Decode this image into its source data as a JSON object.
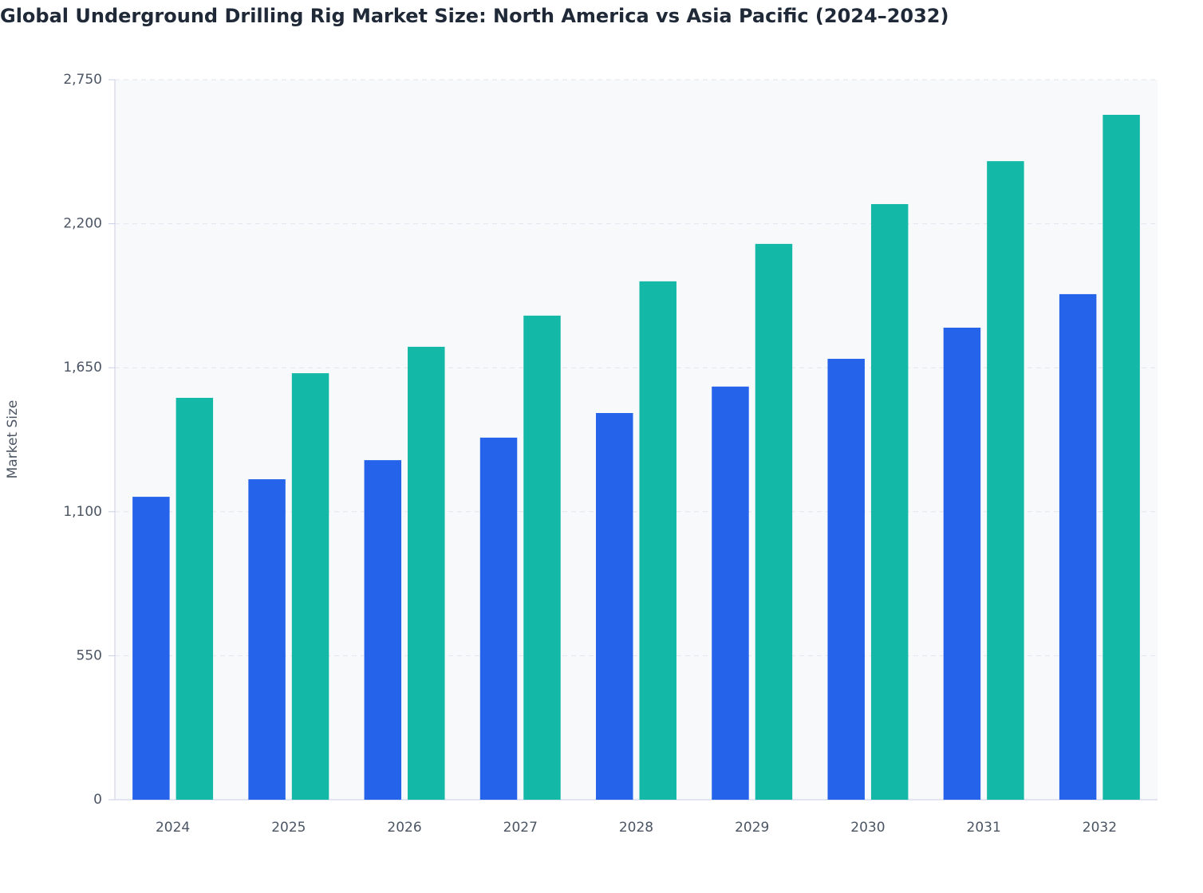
{
  "chart_data": {
    "type": "bar",
    "title": "Global Underground Drilling Rig Market Size: North America vs Asia Pacific (2024–2032)",
    "y_label": "Market Size",
    "categories": [
      "2024",
      "2025",
      "2026",
      "2027",
      "2028",
      "2029",
      "2030",
      "2031",
      "2032"
    ],
    "series": [
      {
        "color": "#2563eb",
        "values": [
          1157,
          1224,
          1297,
          1383,
          1477,
          1578,
          1684,
          1803,
          1931
        ]
      },
      {
        "color": "#14b8a6",
        "values": [
          1535,
          1629,
          1730,
          1849,
          1980,
          2123,
          2275,
          2439,
          2616
        ]
      }
    ],
    "ylim": [
      0,
      2750
    ],
    "yticks": [
      0,
      550,
      {
        "value": 1100,
        "label": "1,100"
      },
      {
        "value": 1650,
        "label": "1,650"
      },
      {
        "value": 2200,
        "label": "2,200"
      },
      {
        "value": 2750,
        "label": "2,750"
      }
    ],
    "grid": true
  }
}
